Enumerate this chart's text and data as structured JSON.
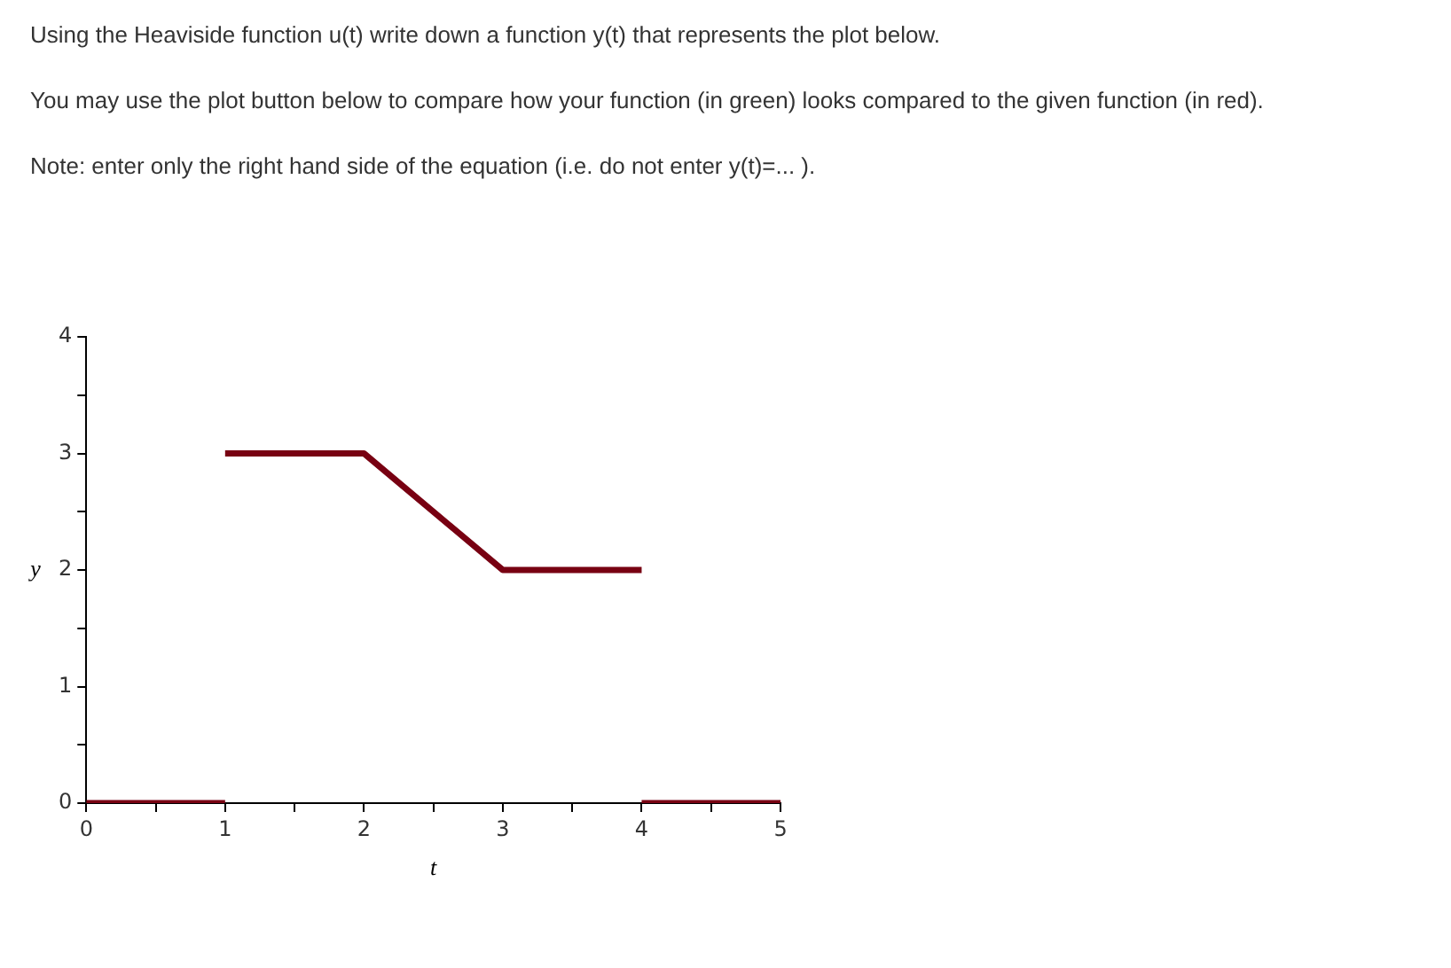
{
  "chart_data": {
    "type": "line",
    "title": "Using the Heaviside function u(t) write down a function y(t) that represents the plot below.",
    "annotations": [
      "You may use the plot button below to compare how your function (in green) looks compared to the given function (in red).",
      "Note: enter only the right hand side of the equation (i.e. do not enter y(t)=... )."
    ],
    "xlabel": "t",
    "ylabel": "y",
    "series": [
      {
        "color": "#780012",
        "x": [
          0,
          1
        ],
        "values": [
          0,
          0
        ]
      },
      {
        "color": "#780012",
        "x": [
          1,
          2,
          3,
          4
        ],
        "values": [
          3,
          3,
          2,
          2
        ]
      },
      {
        "color": "#780012",
        "x": [
          4,
          5
        ],
        "values": [
          0,
          0
        ]
      }
    ],
    "xlim": [
      0,
      5
    ],
    "ylim": [
      0,
      4
    ],
    "xticks": [
      0,
      {
        "value": 0.5,
        "label": null
      },
      1,
      {
        "value": 1.5,
        "label": null
      },
      2,
      {
        "value": 2.5,
        "label": null
      },
      3,
      {
        "value": 3.5,
        "label": null
      },
      4,
      {
        "value": 4.5,
        "label": null
      },
      5
    ],
    "yticks": [
      0,
      {
        "value": 0.5,
        "label": null
      },
      1,
      {
        "value": 1.5,
        "label": null
      },
      2,
      {
        "value": 2.5,
        "label": null
      },
      3,
      {
        "value": 3.5,
        "label": null
      },
      4
    ],
    "grid": false,
    "legend": false,
    "marker": "none",
    "line_style": "solid"
  }
}
